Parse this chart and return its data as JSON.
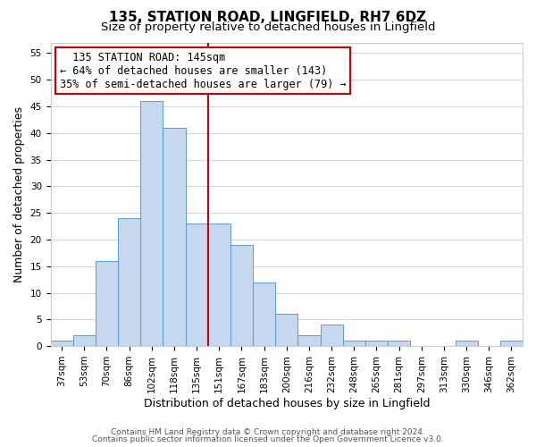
{
  "title": "135, STATION ROAD, LINGFIELD, RH7 6DZ",
  "subtitle": "Size of property relative to detached houses in Lingfield",
  "xlabel": "Distribution of detached houses by size in Lingfield",
  "ylabel": "Number of detached properties",
  "footer_line1": "Contains HM Land Registry data © Crown copyright and database right 2024.",
  "footer_line2": "Contains public sector information licensed under the Open Government Licence v3.0.",
  "bar_labels": [
    "37sqm",
    "53sqm",
    "70sqm",
    "86sqm",
    "102sqm",
    "118sqm",
    "135sqm",
    "151sqm",
    "167sqm",
    "183sqm",
    "200sqm",
    "216sqm",
    "232sqm",
    "248sqm",
    "265sqm",
    "281sqm",
    "297sqm",
    "313sqm",
    "330sqm",
    "346sqm",
    "362sqm"
  ],
  "bar_values": [
    1,
    2,
    16,
    24,
    46,
    41,
    23,
    23,
    19,
    12,
    6,
    2,
    4,
    1,
    1,
    1,
    0,
    0,
    1,
    0,
    1
  ],
  "bar_color": "#c5d8f0",
  "bar_edge_color": "#5b9bd5",
  "vline_color": "#cc0000",
  "annotation_title": "135 STATION ROAD: 145sqm",
  "annotation_line1": "← 64% of detached houses are smaller (143)",
  "annotation_line2": "35% of semi-detached houses are larger (79) →",
  "annotation_box_color": "#ffffff",
  "annotation_box_edge": "#cc0000",
  "ylim": [
    0,
    57
  ],
  "yticks": [
    0,
    5,
    10,
    15,
    20,
    25,
    30,
    35,
    40,
    45,
    50,
    55
  ],
  "background_color": "#ffffff",
  "grid_color": "#cccccc",
  "title_fontsize": 11,
  "subtitle_fontsize": 9.5,
  "axis_label_fontsize": 9,
  "tick_fontsize": 7.5,
  "annotation_fontsize": 8.5,
  "footer_fontsize": 6.5
}
